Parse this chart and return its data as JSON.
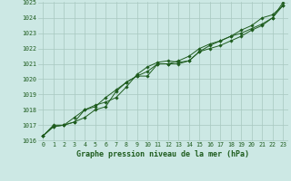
{
  "xlabel": "Graphe pression niveau de la mer (hPa)",
  "x": [
    0,
    1,
    2,
    3,
    4,
    5,
    6,
    7,
    8,
    9,
    10,
    11,
    12,
    13,
    14,
    15,
    16,
    17,
    18,
    19,
    20,
    21,
    22,
    23
  ],
  "line1": [
    1016.3,
    1016.9,
    1017.0,
    1017.2,
    1017.5,
    1018.0,
    1018.2,
    1019.2,
    1019.8,
    1020.2,
    1020.2,
    1021.0,
    1021.0,
    1021.0,
    1021.2,
    1021.8,
    1022.0,
    1022.2,
    1022.5,
    1022.8,
    1023.2,
    1023.5,
    1024.0,
    1024.8
  ],
  "line2": [
    1016.3,
    1017.0,
    1017.0,
    1017.2,
    1018.0,
    1018.3,
    1018.5,
    1018.8,
    1019.5,
    1020.3,
    1020.8,
    1021.1,
    1021.2,
    1021.1,
    1021.2,
    1021.8,
    1022.2,
    1022.5,
    1022.8,
    1023.0,
    1023.3,
    1023.6,
    1024.0,
    1025.0
  ],
  "line3": [
    1016.3,
    1016.9,
    1017.0,
    1017.5,
    1018.0,
    1018.2,
    1018.8,
    1019.3,
    1019.8,
    1020.2,
    1020.5,
    1021.0,
    1021.0,
    1021.2,
    1021.5,
    1022.0,
    1022.3,
    1022.5,
    1022.8,
    1023.2,
    1023.5,
    1024.0,
    1024.2,
    1024.8
  ],
  "line_color": "#1e5c1e",
  "bg_color": "#cce8e4",
  "grid_color": "#a8c8c0",
  "ylim": [
    1016,
    1025
  ],
  "xlim": [
    -0.5,
    23.5
  ],
  "yticks": [
    1016,
    1017,
    1018,
    1019,
    1020,
    1021,
    1022,
    1023,
    1024,
    1025
  ],
  "xticks": [
    0,
    1,
    2,
    3,
    4,
    5,
    6,
    7,
    8,
    9,
    10,
    11,
    12,
    13,
    14,
    15,
    16,
    17,
    18,
    19,
    20,
    21,
    22,
    23
  ],
  "tick_fontsize": 4.8,
  "label_fontsize": 6.0,
  "marker": "D",
  "marker_size": 1.8,
  "line_width": 0.7
}
